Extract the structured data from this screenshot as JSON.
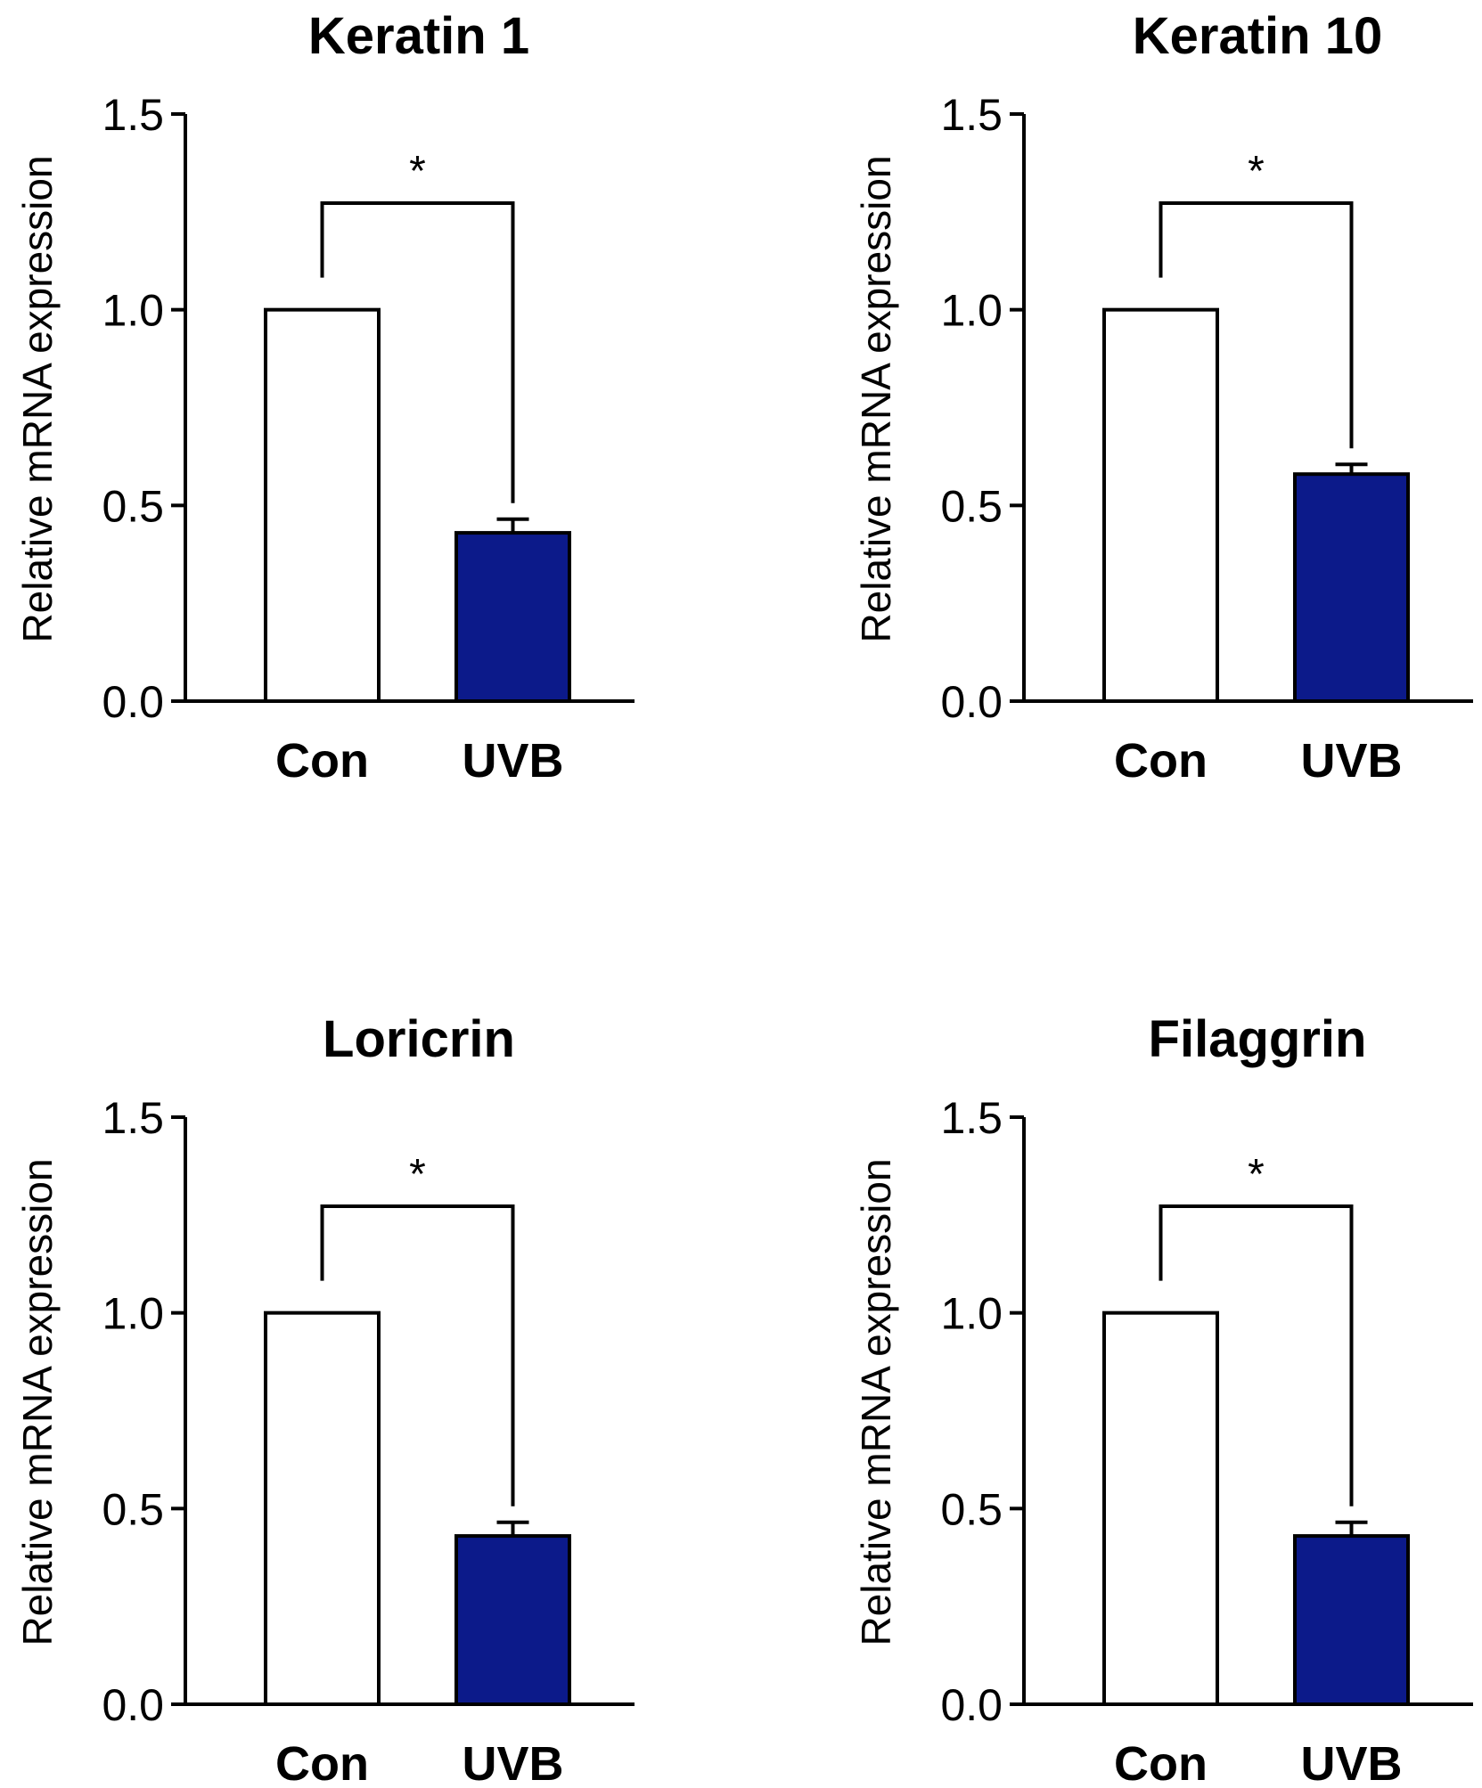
{
  "chart_data": [
    {
      "type": "bar",
      "title": "Keratin 1",
      "categories": [
        "Con",
        "UVB"
      ],
      "values": [
        1.0,
        0.43
      ],
      "errors": [
        0,
        0.035
      ],
      "ylabel": "Relative mRNA expression",
      "xlabel": "",
      "ylim": [
        0,
        1.5
      ],
      "yticks": [
        "0.0",
        "0.5",
        "1.0",
        "1.5"
      ],
      "significance": "*",
      "bar_colors": [
        "#ffffff",
        "#0c1a8a"
      ]
    },
    {
      "type": "bar",
      "title": "Keratin 10",
      "categories": [
        "Con",
        "UVB"
      ],
      "values": [
        1.0,
        0.58
      ],
      "errors": [
        0,
        0.025
      ],
      "ylabel": "Relative mRNA expression",
      "xlabel": "",
      "ylim": [
        0,
        1.5
      ],
      "yticks": [
        "0.0",
        "0.5",
        "1.0",
        "1.5"
      ],
      "significance": "*",
      "bar_colors": [
        "#ffffff",
        "#0c1a8a"
      ]
    },
    {
      "type": "bar",
      "title": "Loricrin",
      "categories": [
        "Con",
        "UVB"
      ],
      "values": [
        1.0,
        0.43
      ],
      "errors": [
        0,
        0.035
      ],
      "ylabel": "Relative mRNA expression",
      "xlabel": "",
      "ylim": [
        0,
        1.5
      ],
      "yticks": [
        "0.0",
        "0.5",
        "1.0",
        "1.5"
      ],
      "significance": "*",
      "bar_colors": [
        "#ffffff",
        "#0c1a8a"
      ]
    },
    {
      "type": "bar",
      "title": "Filaggrin",
      "categories": [
        "Con",
        "UVB"
      ],
      "values": [
        1.0,
        0.43
      ],
      "errors": [
        0,
        0.035
      ],
      "ylabel": "Relative mRNA expression",
      "xlabel": "",
      "ylim": [
        0,
        1.5
      ],
      "yticks": [
        "0.0",
        "0.5",
        "1.0",
        "1.5"
      ],
      "significance": "*",
      "bar_colors": [
        "#ffffff",
        "#0c1a8a"
      ]
    }
  ]
}
